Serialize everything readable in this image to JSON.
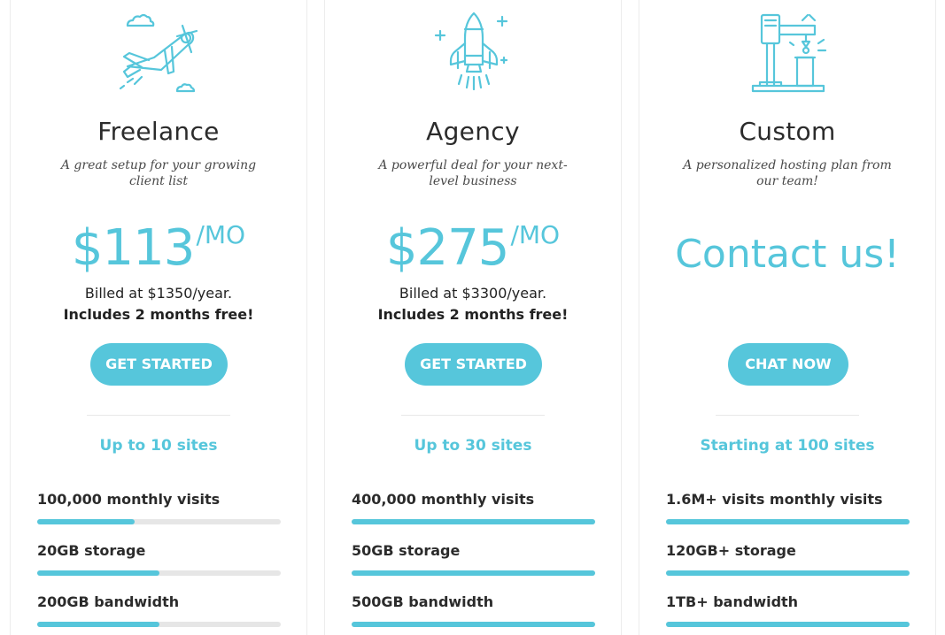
{
  "colors": {
    "accent": "#56c6db",
    "track": "#e6e6e6"
  },
  "plans": [
    {
      "icon": "airplane-icon",
      "name": "Freelance",
      "tagline": "A great setup for your growing client list",
      "price": "$113",
      "per": "/MO",
      "billed": "Billed at $1350/year.",
      "free": "Includes 2 months free!",
      "button": "GET STARTED",
      "sites": "Up to 10 sites",
      "features": [
        {
          "label": "100,000 monthly visits",
          "level": 0.4
        },
        {
          "label": "20GB storage",
          "level": 0.5
        },
        {
          "label": "200GB bandwidth",
          "level": 0.5
        }
      ]
    },
    {
      "icon": "rocket-icon",
      "name": "Agency",
      "tagline": "A powerful deal for your next-level business",
      "price": "$275",
      "per": "/MO",
      "billed": "Billed at $3300/year.",
      "free": "Includes 2 months free!",
      "button": "GET STARTED",
      "sites": "Up to 30 sites",
      "features": [
        {
          "label": "400,000 monthly visits",
          "level": 1.0
        },
        {
          "label": "50GB storage",
          "level": 1.0
        },
        {
          "label": "500GB bandwidth",
          "level": 1.0
        }
      ]
    },
    {
      "icon": "machine-tool-icon",
      "name": "Custom",
      "tagline": "A personalized hosting plan from our team!",
      "contact": "Contact us!",
      "button": "CHAT NOW",
      "sites": "Starting at 100 sites",
      "features": [
        {
          "label": "1.6M+ visits monthly visits",
          "level": 1.0
        },
        {
          "label": "120GB+ storage",
          "level": 1.0
        },
        {
          "label": "1TB+ bandwidth",
          "level": 1.0
        }
      ]
    }
  ]
}
